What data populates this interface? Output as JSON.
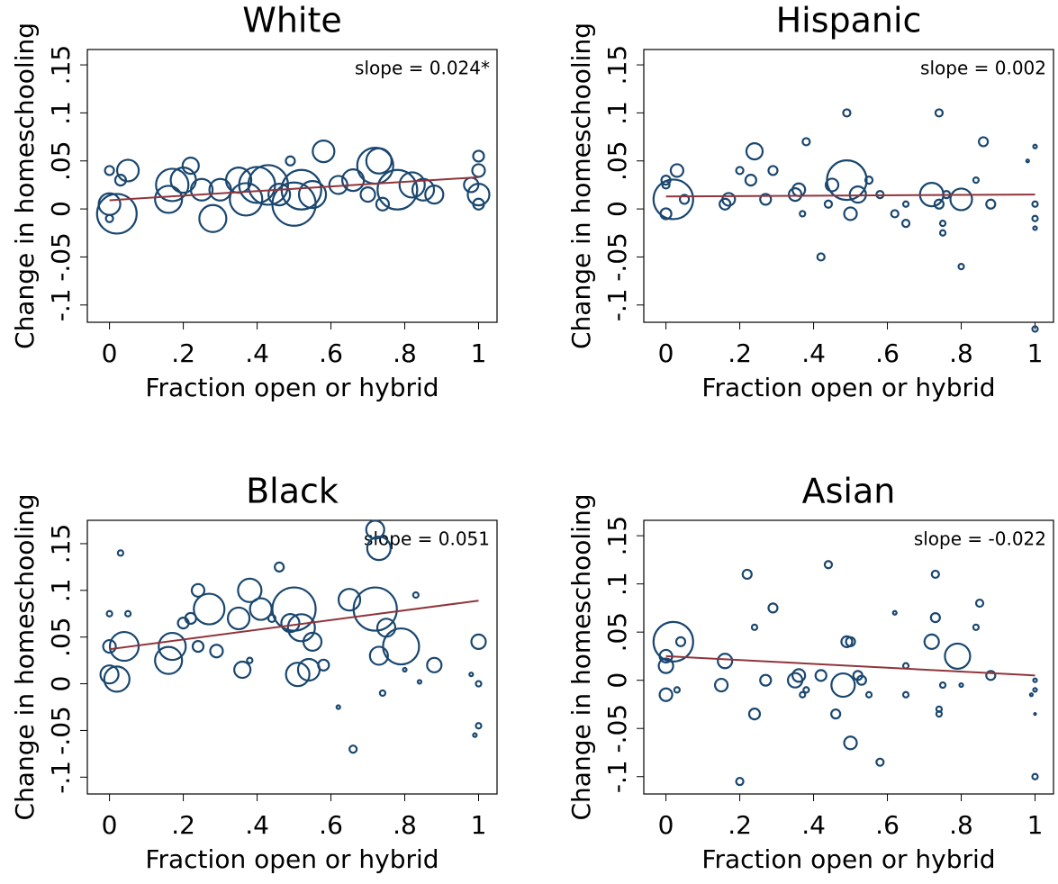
{
  "chart_data": [
    {
      "type": "scatter",
      "title": "White",
      "xlabel": "Fraction open or hybrid",
      "ylabel": "Change in homeschooling",
      "annotation": "slope = 0.024*",
      "xlim": [
        -0.06,
        1.05
      ],
      "ylim": [
        -0.118,
        0.166
      ],
      "xticks": [
        0,
        {
          "value": 0.2,
          "label": ".2"
        },
        {
          "value": 0.4,
          "label": ".4"
        },
        {
          "value": 0.6,
          "label": ".6"
        },
        {
          "value": 0.8,
          "label": ".8"
        },
        1
      ],
      "yticks": [
        {
          "value": -0.1,
          "label": "-.1"
        },
        {
          "value": -0.05,
          "label": "-.05"
        },
        0,
        {
          "value": 0.05,
          "label": ".05"
        },
        {
          "value": 0.1,
          "label": ".1"
        },
        {
          "value": 0.15,
          "label": ".15"
        }
      ],
      "series": [
        {
          "color": "#1a476f",
          "x": [
            0,
            0,
            0,
            0.02,
            0.05,
            0.03,
            0.16,
            0.17,
            0.2,
            0.22,
            0.25,
            0.28,
            0.3,
            0.35,
            0.37,
            0.4,
            0.43,
            0.46,
            0.49,
            0.5,
            0.52,
            0.55,
            0.58,
            0.62,
            0.66,
            0.7,
            0.72,
            0.73,
            0.74,
            0.78,
            0.82,
            0.85,
            0.88,
            0.98,
            1,
            1,
            1,
            1
          ],
          "values": [
            0.04,
            0.005,
            -0.01,
            -0.005,
            0.04,
            0.03,
            0.01,
            0.025,
            0.03,
            0.045,
            0.02,
            -0.01,
            0.02,
            0.03,
            0.01,
            0.025,
            0.025,
            0.015,
            0.05,
            0.005,
            0.02,
            0.015,
            0.06,
            0.025,
            0.03,
            0.015,
            0.045,
            0.05,
            0.005,
            0.02,
            0.025,
            0.02,
            0.015,
            0.025,
            0.055,
            0.04,
            0.015,
            0.005
          ],
          "sizes": [
            5,
            12,
            4,
            22,
            12,
            6,
            15,
            18,
            14,
            9,
            12,
            15,
            12,
            14,
            18,
            20,
            22,
            12,
            5,
            24,
            22,
            15,
            12,
            10,
            12,
            8,
            20,
            14,
            7,
            22,
            14,
            12,
            10,
            8,
            6,
            7,
            12,
            6
          ]
        }
      ],
      "fit_line": {
        "color": "#90353b",
        "x": [
          0,
          1
        ],
        "values": [
          0.009,
          0.033
        ]
      }
    },
    {
      "type": "scatter",
      "title": "Hispanic",
      "xlabel": "Fraction open or hybrid",
      "ylabel": "Change in homeschooling",
      "annotation": "slope = 0.002",
      "xlim": [
        -0.06,
        1.05
      ],
      "ylim": [
        -0.118,
        0.166
      ],
      "xticks": [
        0,
        {
          "value": 0.2,
          "label": ".2"
        },
        {
          "value": 0.4,
          "label": ".4"
        },
        {
          "value": 0.6,
          "label": ".6"
        },
        {
          "value": 0.8,
          "label": ".8"
        },
        1
      ],
      "yticks": [
        {
          "value": -0.1,
          "label": "-.1"
        },
        {
          "value": -0.05,
          "label": "-.05"
        },
        0,
        {
          "value": 0.05,
          "label": ".05"
        },
        {
          "value": 0.1,
          "label": ".1"
        },
        {
          "value": 0.15,
          "label": ".15"
        }
      ],
      "series": [
        {
          "color": "#1a476f",
          "x": [
            0,
            0,
            0,
            0.02,
            0.03,
            0.05,
            0.16,
            0.17,
            0.2,
            0.23,
            0.24,
            0.27,
            0.29,
            0.35,
            0.36,
            0.37,
            0.38,
            0.42,
            0.44,
            0.45,
            0.49,
            0.49,
            0.5,
            0.52,
            0.55,
            0.58,
            0.62,
            0.65,
            0.65,
            0.72,
            0.74,
            0.74,
            0.75,
            0.75,
            0.76,
            0.8,
            0.8,
            0.84,
            0.86,
            0.88,
            0.98,
            1,
            1,
            1,
            1,
            1
          ],
          "values": [
            0.025,
            0.03,
            -0.005,
            0.01,
            0.04,
            0.01,
            0.005,
            0.01,
            0.04,
            0.03,
            0.06,
            0.01,
            0.04,
            0.015,
            0.02,
            -0.005,
            0.07,
            -0.05,
            0.005,
            0.025,
            0.1,
            0.03,
            -0.005,
            0.015,
            0.03,
            0.015,
            -0.005,
            -0.015,
            0.005,
            0.015,
            0.1,
            0.005,
            -0.015,
            -0.025,
            0.015,
            0.01,
            -0.06,
            0.03,
            0.07,
            0.005,
            0.05,
            0.065,
            0.005,
            -0.01,
            -0.02,
            -0.125
          ],
          "sizes": [
            4,
            5,
            6,
            22,
            7,
            5,
            6,
            7,
            4,
            6,
            9,
            6,
            5,
            7,
            7,
            3,
            4,
            4,
            4,
            7,
            4,
            22,
            7,
            9,
            4,
            4,
            4,
            4,
            3,
            13,
            4,
            5,
            3,
            3,
            4,
            12,
            3,
            3,
            5,
            5,
            1.5,
            2,
            3,
            3,
            2,
            3
          ]
        }
      ],
      "fit_line": {
        "color": "#90353b",
        "x": [
          0,
          1
        ],
        "values": [
          0.013,
          0.015
        ]
      }
    },
    {
      "type": "scatter",
      "title": "Black",
      "xlabel": "Fraction open or hybrid",
      "ylabel": "Change in homeschooling",
      "annotation": "slope = 0.051",
      "xlim": [
        -0.06,
        1.05
      ],
      "ylim": [
        -0.118,
        0.175
      ],
      "xticks": [
        0,
        {
          "value": 0.2,
          "label": ".2"
        },
        {
          "value": 0.4,
          "label": ".4"
        },
        {
          "value": 0.6,
          "label": ".6"
        },
        {
          "value": 0.8,
          "label": ".8"
        },
        1
      ],
      "yticks": [
        {
          "value": -0.1,
          "label": "-.1"
        },
        {
          "value": -0.05,
          "label": "-.05"
        },
        0,
        {
          "value": 0.05,
          "label": ".05"
        },
        {
          "value": 0.1,
          "label": ".1"
        },
        {
          "value": 0.15,
          "label": ".15"
        }
      ],
      "series": [
        {
          "color": "#1a476f",
          "x": [
            0,
            0,
            0,
            0.02,
            0.03,
            0.04,
            0.05,
            0.16,
            0.17,
            0.2,
            0.22,
            0.24,
            0.24,
            0.27,
            0.29,
            0.35,
            0.36,
            0.38,
            0.38,
            0.41,
            0.44,
            0.46,
            0.49,
            0.5,
            0.51,
            0.52,
            0.54,
            0.55,
            0.58,
            0.62,
            0.65,
            0.66,
            0.72,
            0.72,
            0.73,
            0.73,
            0.74,
            0.75,
            0.79,
            0.8,
            0.83,
            0.84,
            0.88,
            0.98,
            1,
            1,
            0.99,
            1
          ],
          "values": [
            0.075,
            0.01,
            0.04,
            0.005,
            0.14,
            0.04,
            0.075,
            0.025,
            0.04,
            0.065,
            0.07,
            0.1,
            0.04,
            0.08,
            0.035,
            0.07,
            0.015,
            0.1,
            0.025,
            0.08,
            0.07,
            0.125,
            0.065,
            0.08,
            0.01,
            0.06,
            0.015,
            0.045,
            0.02,
            -0.025,
            0.09,
            -0.07,
            0.08,
            0.165,
            0.145,
            0.03,
            -0.01,
            0.06,
            0.04,
            0.015,
            0.095,
            0.002,
            0.02,
            0.01,
            0.045,
            0,
            -0.055,
            -0.045
          ],
          "sizes": [
            3,
            10,
            7,
            14,
            3,
            16,
            3,
            15,
            15,
            6,
            6,
            7,
            6,
            17,
            7,
            12,
            9,
            13,
            3,
            12,
            4,
            5,
            10,
            24,
            13,
            15,
            12,
            10,
            6,
            2,
            12,
            4,
            24,
            10,
            13,
            10,
            3,
            10,
            20,
            2,
            3,
            2,
            8,
            2,
            8,
            3,
            2,
            3
          ]
        }
      ],
      "fit_line": {
        "color": "#90353b",
        "x": [
          0,
          1
        ],
        "values": [
          0.037,
          0.089
        ]
      }
    },
    {
      "type": "scatter",
      "title": "Asian",
      "xlabel": "Fraction open or hybrid",
      "ylabel": "Change in homeschooling",
      "annotation": "slope = -0.022",
      "xlim": [
        -0.06,
        1.05
      ],
      "ylim": [
        -0.118,
        0.166
      ],
      "xticks": [
        0,
        {
          "value": 0.2,
          "label": ".2"
        },
        {
          "value": 0.4,
          "label": ".4"
        },
        {
          "value": 0.6,
          "label": ".6"
        },
        {
          "value": 0.8,
          "label": ".8"
        },
        1
      ],
      "yticks": [
        {
          "value": -0.1,
          "label": "-.1"
        },
        {
          "value": -0.05,
          "label": "-.05"
        },
        0,
        {
          "value": 0.05,
          "label": ".05"
        },
        {
          "value": 0.1,
          "label": ".1"
        },
        {
          "value": 0.15,
          "label": ".15"
        }
      ],
      "series": [
        {
          "color": "#1a476f",
          "x": [
            0,
            0,
            0,
            0.02,
            0.04,
            0.03,
            0.15,
            0.16,
            0.2,
            0.22,
            0.24,
            0.24,
            0.27,
            0.29,
            0.35,
            0.36,
            0.37,
            0.38,
            0.42,
            0.44,
            0.46,
            0.48,
            0.49,
            0.5,
            0.5,
            0.52,
            0.53,
            0.55,
            0.58,
            0.62,
            0.65,
            0.65,
            0.72,
            0.73,
            0.73,
            0.74,
            0.74,
            0.75,
            0.79,
            0.8,
            0.84,
            0.85,
            0.88,
            0.99,
            1,
            1,
            1,
            1
          ],
          "values": [
            0.025,
            0.015,
            -0.015,
            0.04,
            0.04,
            -0.01,
            -0.005,
            0.02,
            -0.105,
            0.11,
            0.055,
            -0.035,
            0,
            0.075,
            0,
            0.005,
            -0.015,
            -0.01,
            0.005,
            0.12,
            -0.035,
            -0.005,
            0.04,
            0.04,
            -0.065,
            0.005,
            0,
            -0.015,
            -0.085,
            0.07,
            0.015,
            -0.015,
            0.04,
            0.065,
            0.11,
            -0.03,
            -0.035,
            -0.005,
            0.025,
            -0.005,
            0.055,
            0.08,
            0.005,
            -0.015,
            -0.01,
            0,
            -0.035,
            -0.1
          ],
          "sizes": [
            7,
            8,
            7,
            22,
            5,
            3,
            7,
            8,
            4,
            5,
            3,
            6,
            6,
            5,
            8,
            7,
            3,
            3,
            6,
            4,
            5,
            13,
            6,
            5,
            7,
            5,
            5,
            3,
            4,
            2,
            3,
            3,
            8,
            5,
            4,
            3,
            3,
            3,
            14,
            2,
            3,
            4,
            5,
            1.5,
            2,
            2,
            1,
            3
          ]
        }
      ],
      "fit_line": {
        "color": "#90353b",
        "x": [
          0,
          1
        ],
        "values": [
          0.025,
          0.005
        ]
      }
    }
  ]
}
